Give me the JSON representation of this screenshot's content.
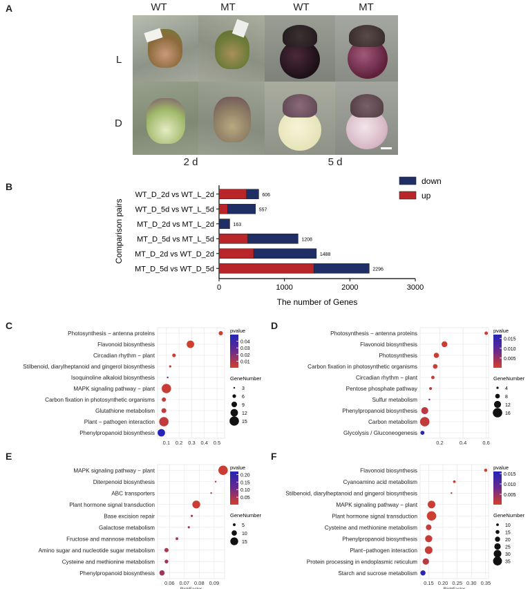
{
  "panelA": {
    "letter": "A",
    "col_labels": [
      "WT",
      "MT",
      "WT",
      "MT"
    ],
    "row_labels": [
      "L",
      "D"
    ],
    "time_labels": [
      "2 d",
      "5 d"
    ]
  },
  "panelB": {
    "letter": "B",
    "legend": {
      "down": "down",
      "up": "up"
    },
    "colors": {
      "down": "#1f2f66",
      "up": "#b8262a"
    }
  },
  "panelC": {
    "letter": "C"
  },
  "panelD": {
    "letter": "D"
  },
  "panelE": {
    "letter": "E"
  },
  "panelF": {
    "letter": "F"
  },
  "chart_data": [
    {
      "id": "B",
      "type": "bar",
      "orientation": "horizontal",
      "stacked": true,
      "ylabel": "Comparison pairs",
      "xlabel": "The number of Genes",
      "xlim": [
        0,
        3000
      ],
      "xticks": [
        0,
        1000,
        2000,
        3000
      ],
      "categories": [
        "WT_D_2d vs WT_L_2d",
        "WT_D_5d vs WT_L_5d",
        "MT_D_2d vs MT_L_2d",
        "MT_D_5d vs MT_L_5d",
        "MT_D_2d vs WT_D_2d",
        "MT_D_5d vs WT_D_5d"
      ],
      "series": [
        {
          "name": "up",
          "values": [
            420,
            130,
            0,
            440,
            530,
            1450
          ]
        },
        {
          "name": "down",
          "values": [
            186,
            427,
            163,
            768,
            958,
            846
          ]
        }
      ],
      "totals": [
        "606",
        "557",
        "163",
        "1208",
        "1488",
        "2296"
      ],
      "legend_items": [
        "down",
        "up"
      ]
    },
    {
      "id": "C",
      "type": "scatter",
      "xlabel": "RichFactor",
      "xticks": [
        "0.1",
        "0.2",
        "0.3",
        "0.4",
        "0.5"
      ],
      "xlim": [
        0.03,
        0.56
      ],
      "categories": [
        "Photosynthesis − antenna proteins",
        "Flavonoid biosynthesis",
        "Circadian rhythm − plant",
        "Stilbenoid, diarylheptanoid and gingerol biosynthesis",
        "Isoquinoline alkaloid biosynthesis",
        "MAPK signaling pathway − plant",
        "Carbon fixation in photosynthetic organisms",
        "Glutathione metabolism",
        "Plant − pathogen interaction",
        "Phenylpropanoid biosynthesis"
      ],
      "rich": [
        0.53,
        0.29,
        0.16,
        0.13,
        0.11,
        0.1,
        0.08,
        0.08,
        0.08,
        0.06
      ],
      "genes": [
        7,
        12,
        6,
        4,
        3,
        15,
        7,
        8,
        15,
        12
      ],
      "pvalue": [
        0.001,
        0.001,
        0.002,
        0.003,
        0.03,
        0.003,
        0.003,
        0.005,
        0.005,
        0.05
      ],
      "pvalue_range": [
        0,
        0.05
      ],
      "legend_pvalue_title": "pvalue",
      "pvalue_ticks": [
        "0.04",
        "0.03",
        "0.02",
        "0.01"
      ],
      "pvalue_tick_values": [
        0.04,
        0.03,
        0.02,
        0.01
      ],
      "legend_size_title": "GeneNumber",
      "size_ticks": [
        "3",
        "6",
        "9",
        "12",
        "15"
      ],
      "size_tick_values": [
        3,
        6,
        9,
        12,
        15
      ],
      "size_range": [
        3,
        15
      ]
    },
    {
      "id": "D",
      "type": "scatter",
      "xlabel": "RichFactor",
      "xticks": [
        "0.2",
        "0.4",
        "0.6"
      ],
      "xlim": [
        0.03,
        0.62
      ],
      "categories": [
        "Photosynthesis − antenna proteins",
        "Flavonoid biosynthesis",
        "Photosynthesis",
        "Carbon fixation in photosynthetic organisms",
        "Circadian rhythm − plant",
        "Pentose phosphate pathway",
        "Sulfur metabolism",
        "Phenylpropanoid biosynthesis",
        "Carbon metabolism",
        "Glycolysis / Gluconeogenesis"
      ],
      "rich": [
        0.6,
        0.24,
        0.17,
        0.16,
        0.14,
        0.12,
        0.11,
        0.07,
        0.07,
        0.05
      ],
      "genes": [
        6,
        10,
        9,
        8,
        6,
        5,
        3,
        12,
        16,
        7
      ],
      "pvalue": [
        0.0005,
        0.0005,
        0.0008,
        0.001,
        0.001,
        0.002,
        0.008,
        0.002,
        0.0015,
        0.016
      ],
      "pvalue_range": [
        0,
        0.017
      ],
      "legend_pvalue_title": "pvalue",
      "pvalue_ticks": [
        "0.015",
        "0.010",
        "0.005"
      ],
      "pvalue_tick_values": [
        0.015,
        0.01,
        0.005
      ],
      "legend_size_title": "GeneNumber",
      "size_ticks": [
        "4",
        "8",
        "12",
        "16"
      ],
      "size_tick_values": [
        4,
        8,
        12,
        16
      ],
      "size_range": [
        3,
        16
      ]
    },
    {
      "id": "E",
      "type": "scatter",
      "xlabel": "RichFactor",
      "xticks": [
        "0.06",
        "0.07",
        "0.08",
        "0.09"
      ],
      "xlim": [
        0.052,
        0.097
      ],
      "categories": [
        "MAPK signaling pathway − plant",
        "Diterpenoid biosynthesis",
        "ABC transporters",
        "Plant hormone signal transduction",
        "Base excision repair",
        "Galactose metabolism",
        "Fructose and mannose metabolism",
        "Amino sugar and nucleotide sugar metabolism",
        "Cysteine and methionine metabolism",
        "Phenylpropanoid biosynthesis"
      ],
      "rich": [
        0.096,
        0.091,
        0.088,
        0.078,
        0.075,
        0.073,
        0.065,
        0.058,
        0.058,
        0.055
      ],
      "genes": [
        18,
        3,
        3,
        15,
        4,
        4,
        5,
        8,
        7,
        10
      ],
      "pvalue": [
        0.01,
        0.03,
        0.04,
        0.01,
        0.04,
        0.05,
        0.05,
        0.04,
        0.05,
        0.05
      ],
      "pvalue_range": [
        0,
        0.22
      ],
      "legend_pvalue_title": "pvalue",
      "pvalue_ticks": [
        "0.20",
        "0.15",
        "0.10",
        "0.05"
      ],
      "pvalue_tick_values": [
        0.2,
        0.15,
        0.1,
        0.05
      ],
      "legend_size_title": "GeneNumber",
      "size_ticks": [
        "5",
        "10",
        "15"
      ],
      "size_tick_values": [
        5,
        10,
        15
      ],
      "size_range": [
        3,
        18
      ]
    },
    {
      "id": "F",
      "type": "scatter",
      "xlabel": "RichFactor",
      "xticks": [
        "0.15",
        "0.20",
        "0.25",
        "0.30",
        "0.35"
      ],
      "xlim": [
        0.12,
        0.36
      ],
      "categories": [
        "Flavonoid biosynthesis",
        "Cyanoamino acid metabolism",
        "Stilbenoid, diarylheptanoid and gingerol biosynthesis",
        "MAPK signaling pathway − plant",
        "Plant hormone signal transduction",
        "Cysteine and methionine metabolism",
        "Phenylpropanoid biosynthesis",
        "Plant−pathogen interaction",
        "Protein processing in endoplasmic reticulum",
        "Starch and sucrose metabolism"
      ],
      "rich": [
        0.35,
        0.24,
        0.23,
        0.16,
        0.16,
        0.15,
        0.15,
        0.15,
        0.14,
        0.13
      ],
      "genes": [
        12,
        10,
        6,
        30,
        37,
        22,
        28,
        30,
        25,
        20
      ],
      "pvalue": [
        0.0003,
        0.0005,
        0.001,
        0.0008,
        0.0005,
        0.001,
        0.001,
        0.001,
        0.002,
        0.015
      ],
      "pvalue_range": [
        0,
        0.016
      ],
      "legend_pvalue_title": "pvalue",
      "pvalue_ticks": [
        "0.015",
        "0.010",
        "0.005"
      ],
      "pvalue_tick_values": [
        0.015,
        0.01,
        0.005
      ],
      "legend_size_title": "GeneNumber",
      "size_ticks": [
        "10",
        "15",
        "20",
        "25",
        "30",
        "35"
      ],
      "size_tick_values": [
        10,
        15,
        20,
        25,
        30,
        35
      ],
      "size_range": [
        6,
        37
      ]
    }
  ]
}
